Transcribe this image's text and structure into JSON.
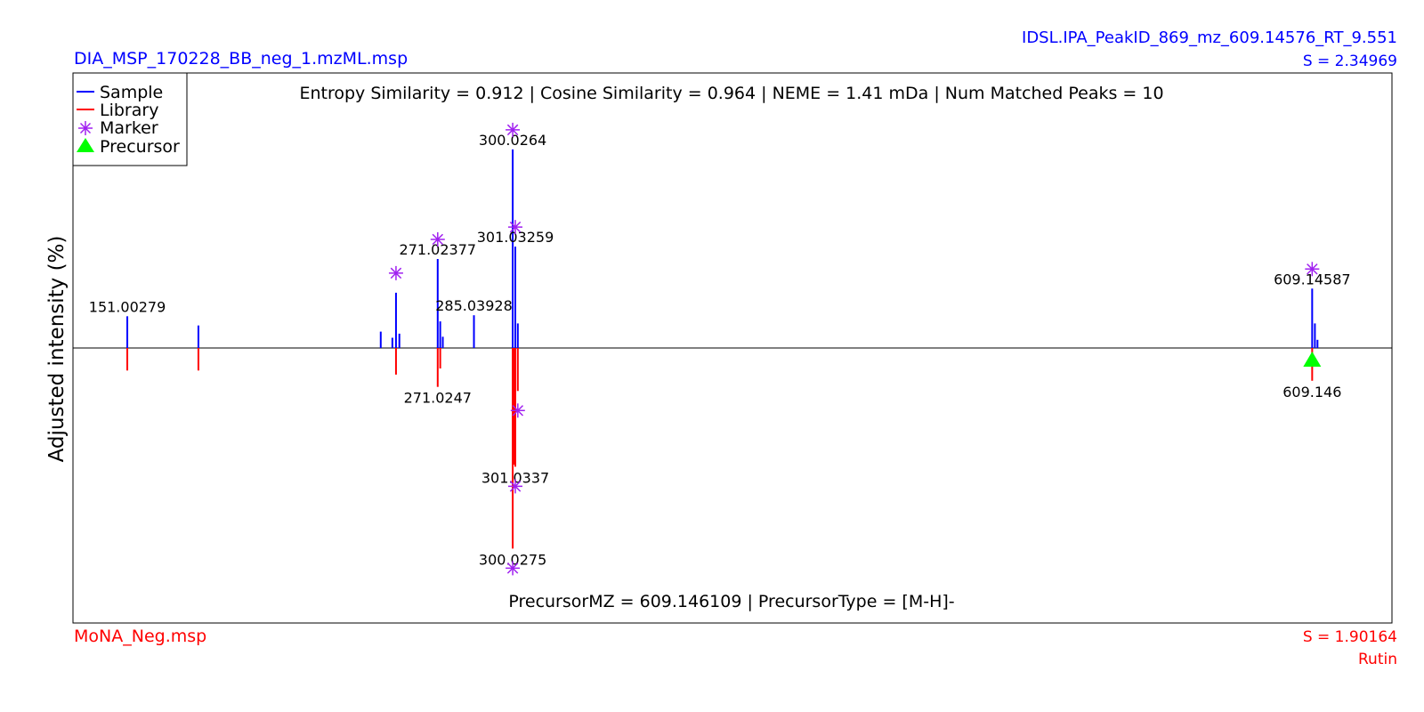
{
  "header": {
    "sample_file": "DIA_MSP_170228_BB_neg_1.mzML.msp",
    "peak_id": "IDSL.IPA_PeakID_869_mz_609.14576_RT_9.551",
    "sample_score": "S = 2.34969"
  },
  "footer": {
    "library_file": "MoNA_Neg.msp",
    "library_score": "S = 1.90164",
    "compound_name": "Rutin"
  },
  "colors": {
    "sample": "#0000ff",
    "library": "#ff0000",
    "marker": "#a020f0",
    "precursor": "#00ff00"
  },
  "chart_data": {
    "type": "mirror-stick",
    "title": "Entropy Similarity = 0.912 | Cosine Similarity = 0.964 | NEME = 1.41 mDa | Num Matched Peaks = 10",
    "subtitle": "PrecursorMZ = 609.146109 | PrecursorType = [M-H]-",
    "ylabel": "Adjusted intensity (%)",
    "xlim": [
      130,
      640
    ],
    "ylim": [
      -130,
      130
    ],
    "grid": false,
    "legend": {
      "placement": "top-left",
      "entries": [
        "Sample",
        "Library",
        "Marker",
        "Precursor"
      ]
    },
    "sample_peaks": [
      {
        "mz": 151.00279,
        "intensity": 15.5,
        "label": "151.00279"
      },
      {
        "mz": 178.5,
        "intensity": 11
      },
      {
        "mz": 249.0,
        "intensity": 8
      },
      {
        "mz": 253.5,
        "intensity": 5
      },
      {
        "mz": 254.9,
        "intensity": 27,
        "marker": true
      },
      {
        "mz": 256.2,
        "intensity": 7
      },
      {
        "mz": 271.02377,
        "intensity": 43.5,
        "label": "271.02377",
        "marker": true
      },
      {
        "mz": 272.0,
        "intensity": 13
      },
      {
        "mz": 273.0,
        "intensity": 5.5
      },
      {
        "mz": 285.03928,
        "intensity": 16,
        "label": "285.03928"
      },
      {
        "mz": 300.0264,
        "intensity": 97,
        "label": "300.0264",
        "marker": true
      },
      {
        "mz": 301.03259,
        "intensity": 49.5,
        "label": "301.03259",
        "marker": true
      },
      {
        "mz": 302.0,
        "intensity": 12
      },
      {
        "mz": 609.14587,
        "intensity": 29,
        "label": "609.14587",
        "marker": true
      },
      {
        "mz": 610.2,
        "intensity": 12
      },
      {
        "mz": 611.2,
        "intensity": 4
      }
    ],
    "library_peaks": [
      {
        "mz": 151.0,
        "intensity": 11
      },
      {
        "mz": 178.5,
        "intensity": 11
      },
      {
        "mz": 254.9,
        "intensity": 13
      },
      {
        "mz": 271.0247,
        "intensity": 19,
        "label": "271.0247"
      },
      {
        "mz": 272.0,
        "intensity": 10
      },
      {
        "mz": 300.0275,
        "intensity": 98,
        "label": "300.0275",
        "marker": true
      },
      {
        "mz": 300.55,
        "intensity": 57
      },
      {
        "mz": 301.0337,
        "intensity": 58,
        "label": "301.0337",
        "marker": true
      },
      {
        "mz": 302.0,
        "intensity": 21,
        "marker": true
      },
      {
        "mz": 609.146,
        "intensity": 16,
        "label": "609.146"
      }
    ],
    "precursor_mz": 609.146
  }
}
